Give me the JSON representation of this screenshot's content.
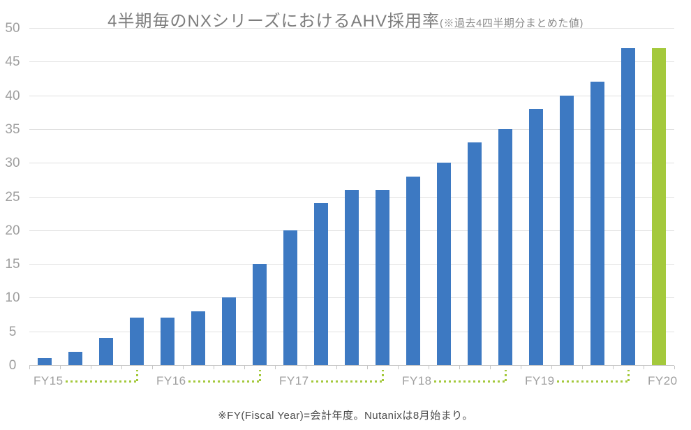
{
  "title": {
    "main": "4半期毎のNXシリーズにおけるAHV採用率",
    "note": "(※過去4四半期分まとめた値)"
  },
  "footnote": "※FY(Fiscal Year)=会計年度。Nutanixは8月始まり。",
  "chart_data": {
    "type": "bar",
    "title": "4半期毎のNXシリーズにおけるAHV採用率",
    "subtitle": "※過去4四半期分まとめた値",
    "xlabel": "",
    "ylabel": "",
    "ylim": [
      0,
      50
    ],
    "yticks": [
      0,
      5,
      10,
      15,
      20,
      25,
      30,
      35,
      40,
      45,
      50
    ],
    "grid": "horizontal",
    "legend": false,
    "groups": [
      {
        "label": "FY15",
        "values": [
          1,
          2,
          4,
          7
        ],
        "highlight": false
      },
      {
        "label": "FY16",
        "values": [
          7,
          8,
          10,
          15
        ],
        "highlight": false
      },
      {
        "label": "FY17",
        "values": [
          20,
          24,
          26,
          26
        ],
        "highlight": false
      },
      {
        "label": "FY18",
        "values": [
          28,
          30,
          33,
          35
        ],
        "highlight": false
      },
      {
        "label": "FY19",
        "values": [
          38,
          40,
          42,
          47
        ],
        "highlight": false
      },
      {
        "label": "FY20",
        "values": [
          47
        ],
        "highlight": true
      }
    ],
    "colors": {
      "bar": "#3d79c2",
      "highlight_bar": "#a4c93c",
      "grid": "#e0e0e0",
      "axis": "#c6c6c6",
      "tick_label": "#9e9e9e",
      "title": "#7d7d7d",
      "footnote": "#4d4d4d",
      "bracket": "#a4c93c"
    }
  }
}
